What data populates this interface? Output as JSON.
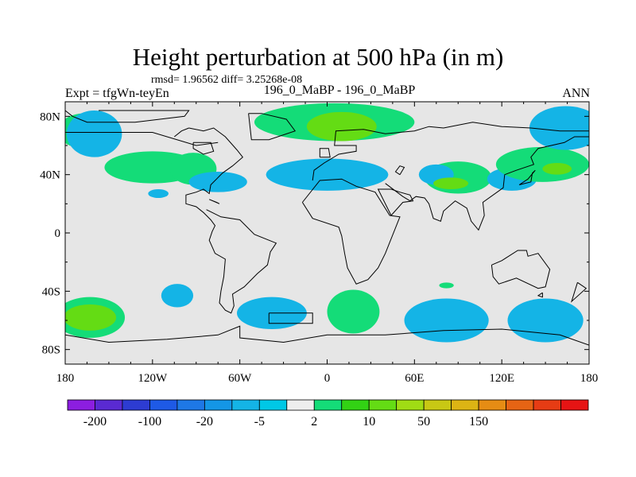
{
  "header": {
    "title": "Height perturbation at 500 hPa (in m)",
    "stats": "rmsd= 1.96562 diff= 3.25268e-08",
    "experiment": "Expt = tfgWn-teyEn",
    "case_pair": "196_0_MaBP - 196_0_MaBP",
    "season": "ANN"
  },
  "chart_data": {
    "type": "heatmap",
    "title": "Height perturbation at 500 hPa (in m)",
    "xlabel": "",
    "ylabel": "",
    "xlim": [
      -180,
      180
    ],
    "ylim": [
      -90,
      90
    ],
    "x_ticks": [
      {
        "value": -180,
        "label": "180"
      },
      {
        "value": -120,
        "label": "120W"
      },
      {
        "value": -60,
        "label": "60W"
      },
      {
        "value": 0,
        "label": "0"
      },
      {
        "value": 60,
        "label": "60E"
      },
      {
        "value": 120,
        "label": "120E"
      },
      {
        "value": 180,
        "label": "180"
      }
    ],
    "y_ticks": [
      {
        "value": 80,
        "label": "80N"
      },
      {
        "value": 40,
        "label": "40N"
      },
      {
        "value": 0,
        "label": "0"
      },
      {
        "value": -40,
        "label": "40S"
      },
      {
        "value": -80,
        "label": "80S"
      }
    ],
    "background_color": "#e6e6e6",
    "contour_levels": [
      -200,
      -150,
      -100,
      -50,
      -20,
      -10,
      -5,
      -2,
      2,
      5,
      10,
      20,
      50,
      100,
      150,
      200
    ],
    "colorbar": {
      "colors": [
        "#8c1ee0",
        "#5a2ad2",
        "#2d3cd2",
        "#1e5ae6",
        "#1e78e6",
        "#1496e6",
        "#14b4e6",
        "#00c8e6",
        "#eeeeee",
        "#14dc78",
        "#32d214",
        "#64dc14",
        "#a0dc14",
        "#c8c814",
        "#dcb414",
        "#e68c14",
        "#e66414",
        "#e63c14",
        "#e61414"
      ],
      "labels": [
        {
          "value": -200,
          "label": "-200"
        },
        {
          "value": -100,
          "label": "-100"
        },
        {
          "value": -20,
          "label": "-20"
        },
        {
          "value": -5,
          "label": "-5"
        },
        {
          "value": 2,
          "label": "2"
        },
        {
          "value": 10,
          "label": "10"
        },
        {
          "value": 50,
          "label": "50"
        },
        {
          "value": 150,
          "label": "150"
        }
      ]
    },
    "anomaly_regions": [
      {
        "name": "pacific-arctic-positive",
        "lon": -167,
        "lat": 70,
        "r_lon": 18,
        "r_lat": 12,
        "value": 3
      },
      {
        "name": "north-pacific-negative",
        "lon": -160,
        "lat": 68,
        "r_lon": 19,
        "r_lat": 16,
        "value": -6
      },
      {
        "name": "north-america-positive",
        "lon": -120,
        "lat": 45,
        "r_lon": 33,
        "r_lat": 11,
        "value": 3
      },
      {
        "name": "north-america-positive-2",
        "lon": -92,
        "lat": 44,
        "r_lon": 16,
        "r_lat": 11,
        "value": 3
      },
      {
        "name": "pacific-small-negative",
        "lon": -116,
        "lat": 27,
        "r_lon": 7,
        "r_lat": 3,
        "value": -6
      },
      {
        "name": "atlantic-negative",
        "lon": -75,
        "lat": 35,
        "r_lon": 20,
        "r_lat": 7,
        "value": -6
      },
      {
        "name": "arctic-europe-positive",
        "lon": 5,
        "lat": 76,
        "r_lon": 55,
        "r_lat": 13,
        "value": 3
      },
      {
        "name": "arctic-europe-strong",
        "lon": 10,
        "lat": 73,
        "r_lon": 24,
        "r_lat": 10,
        "value": 12
      },
      {
        "name": "eurasia-negative",
        "lon": 0,
        "lat": 40,
        "r_lon": 42,
        "r_lat": 11,
        "value": -6
      },
      {
        "name": "eurasia-positive-east",
        "lon": 90,
        "lat": 38,
        "r_lon": 23,
        "r_lat": 11,
        "value": 3
      },
      {
        "name": "asia-small-negative",
        "lon": 75,
        "lat": 40,
        "r_lon": 12,
        "r_lat": 7,
        "value": -6
      },
      {
        "name": "asia-strong",
        "lon": 85,
        "lat": 34,
        "r_lon": 12,
        "r_lat": 4,
        "value": 12
      },
      {
        "name": "east-asia-negative",
        "lon": 127,
        "lat": 37,
        "r_lon": 17,
        "r_lat": 8,
        "value": -6
      },
      {
        "name": "pacific-positive",
        "lon": 148,
        "lat": 47,
        "r_lon": 32,
        "r_lat": 12,
        "value": 3
      },
      {
        "name": "pacific-strong",
        "lon": 158,
        "lat": 44,
        "r_lon": 10,
        "r_lat": 4,
        "value": 12
      },
      {
        "name": "far-east-arctic-negative",
        "lon": 164,
        "lat": 72,
        "r_lon": 25,
        "r_lat": 15,
        "value": -6
      },
      {
        "name": "south-indian-positive",
        "lon": 82,
        "lat": -36,
        "r_lon": 5,
        "r_lat": 2,
        "value": 3
      },
      {
        "name": "south-pacific-negative",
        "lon": -103,
        "lat": -43,
        "r_lon": 11,
        "r_lat": 8,
        "value": -6
      },
      {
        "name": "south-atlantic-negative",
        "lon": -38,
        "lat": -55,
        "r_lon": 24,
        "r_lat": 11,
        "value": -6
      },
      {
        "name": "south-atlantic-positive",
        "lon": 18,
        "lat": -54,
        "r_lon": 18,
        "r_lat": 15,
        "value": 3
      },
      {
        "name": "southern-ocean-negative",
        "lon": 82,
        "lat": -60,
        "r_lon": 29,
        "r_lat": 15,
        "value": -6
      },
      {
        "name": "south-east-pacific-negative",
        "lon": 150,
        "lat": -60,
        "r_lon": 26,
        "r_lat": 15,
        "value": -6
      },
      {
        "name": "southwest-pacific-positive",
        "lon": -163,
        "lat": -58,
        "r_lon": 24,
        "r_lat": 14,
        "value": 3
      },
      {
        "name": "southwest-pacific-strong",
        "lon": -163,
        "lat": -58,
        "r_lon": 18,
        "r_lat": 9,
        "value": 12
      }
    ],
    "coastlines": [
      [
        [
          -157,
          84
        ],
        [
          -95,
          84
        ],
        [
          -98,
          80
        ],
        [
          -115,
          78
        ],
        [
          -132,
          76
        ],
        [
          -165,
          76
        ],
        [
          -175,
          80
        ],
        [
          -180,
          84
        ]
      ],
      [
        [
          -180,
          84
        ],
        [
          -180,
          69
        ],
        [
          -120,
          69
        ],
        [
          -90,
          60
        ],
        [
          -75,
          62
        ]
      ],
      [
        [
          -95,
          72
        ],
        [
          -85,
          70
        ],
        [
          -78,
          72
        ],
        [
          -70,
          66
        ],
        [
          -62,
          57
        ],
        [
          -58,
          52
        ],
        [
          -65,
          46
        ],
        [
          -72,
          41
        ],
        [
          -76,
          37
        ],
        [
          -80,
          33
        ],
        [
          -81,
          27
        ],
        [
          -85,
          30
        ],
        [
          -90,
          28
        ],
        [
          -97,
          26
        ],
        [
          -97,
          20
        ],
        [
          -90,
          18
        ],
        [
          -85,
          14
        ],
        [
          -80,
          9
        ],
        [
          -77,
          5
        ],
        [
          -79,
          1
        ],
        [
          -81,
          -5
        ],
        [
          -77,
          -14
        ],
        [
          -70,
          -18
        ],
        [
          -71,
          -30
        ],
        [
          -73,
          -40
        ],
        [
          -74,
          -48
        ],
        [
          -70,
          -53
        ],
        [
          -66,
          -55
        ],
        [
          -64,
          -50
        ],
        [
          -65,
          -42
        ],
        [
          -57,
          -37
        ],
        [
          -48,
          -28
        ],
        [
          -41,
          -22
        ],
        [
          -39,
          -13
        ],
        [
          -35,
          -7
        ],
        [
          -50,
          -1
        ],
        [
          -60,
          9
        ],
        [
          -73,
          11
        ],
        [
          -83,
          16
        ]
      ],
      [
        [
          -105,
          66
        ],
        [
          -100,
          70
        ],
        [
          -95,
          72
        ]
      ],
      [
        [
          -92,
          62
        ],
        [
          -80,
          62
        ],
        [
          -78,
          56
        ],
        [
          -85,
          54
        ],
        [
          -92,
          58
        ],
        [
          -92,
          62
        ]
      ],
      [
        [
          -54,
          82
        ],
        [
          -45,
          82
        ],
        [
          -28,
          78
        ],
        [
          -22,
          70
        ],
        [
          -40,
          64
        ],
        [
          -52,
          64
        ],
        [
          -54,
          82
        ]
      ],
      [
        [
          -40,
          -55
        ],
        [
          -10,
          -55
        ],
        [
          -10,
          -62
        ],
        [
          -40,
          -62
        ],
        [
          -40,
          -55
        ]
      ],
      [
        [
          -17,
          21
        ],
        [
          -10,
          10
        ],
        [
          8,
          4
        ],
        [
          10,
          -2
        ],
        [
          12,
          -14
        ],
        [
          14,
          -24
        ],
        [
          20,
          -35
        ],
        [
          28,
          -32
        ],
        [
          35,
          -24
        ],
        [
          40,
          -14
        ],
        [
          50,
          11
        ],
        [
          43,
          12
        ],
        [
          33,
          28
        ],
        [
          20,
          32
        ],
        [
          10,
          37
        ],
        [
          -5,
          36
        ],
        [
          -17,
          21
        ]
      ],
      [
        [
          -10,
          36
        ],
        [
          -9,
          43
        ],
        [
          -2,
          48
        ],
        [
          8,
          54
        ],
        [
          20,
          56
        ],
        [
          20,
          60
        ],
        [
          5,
          60
        ],
        [
          6,
          70
        ],
        [
          25,
          71
        ],
        [
          40,
          68
        ],
        [
          60,
          70
        ],
        [
          70,
          73
        ],
        [
          80,
          72
        ],
        [
          100,
          76
        ],
        [
          120,
          73
        ],
        [
          140,
          72
        ],
        [
          160,
          70
        ],
        [
          180,
          70
        ]
      ],
      [
        [
          -5,
          52
        ],
        [
          2,
          52
        ],
        [
          1,
          58
        ],
        [
          -5,
          58
        ],
        [
          -5,
          52
        ]
      ],
      [
        [
          40,
          34
        ],
        [
          52,
          25
        ],
        [
          57,
          22
        ],
        [
          61,
          25
        ],
        [
          67,
          24
        ],
        [
          70,
          20
        ],
        [
          73,
          10
        ],
        [
          78,
          8
        ],
        [
          80,
          15
        ],
        [
          88,
          22
        ],
        [
          96,
          17
        ],
        [
          99,
          8
        ],
        [
          104,
          2
        ],
        [
          108,
          12
        ],
        [
          107,
          21
        ],
        [
          121,
          31
        ],
        [
          122,
          40
        ],
        [
          130,
          43
        ],
        [
          142,
          47
        ],
        [
          140,
          52
        ],
        [
          145,
          58
        ],
        [
          163,
          62
        ],
        [
          170,
          66
        ],
        [
          180,
          66
        ]
      ],
      [
        [
          50,
          40
        ],
        [
          53,
          45
        ],
        [
          50,
          46
        ],
        [
          47,
          42
        ],
        [
          50,
          40
        ]
      ],
      [
        [
          44,
          12
        ],
        [
          52,
          21
        ],
        [
          59,
          22
        ],
        [
          57,
          26
        ],
        [
          50,
          28
        ],
        [
          44,
          30
        ],
        [
          35,
          30
        ],
        [
          44,
          12
        ]
      ],
      [
        [
          113,
          -22
        ],
        [
          120,
          -19
        ],
        [
          131,
          -12
        ],
        [
          137,
          -12
        ],
        [
          138,
          -16
        ],
        [
          145,
          -14
        ],
        [
          153,
          -25
        ],
        [
          150,
          -37
        ],
        [
          145,
          -38
        ],
        [
          130,
          -31
        ],
        [
          118,
          -35
        ],
        [
          114,
          -30
        ],
        [
          113,
          -22
        ]
      ],
      [
        [
          -180,
          -70
        ],
        [
          -150,
          -75
        ],
        [
          -110,
          -73
        ],
        [
          -75,
          -70
        ],
        [
          -60,
          -64
        ],
        [
          -60,
          -72
        ],
        [
          -30,
          -75
        ],
        [
          0,
          -70
        ],
        [
          40,
          -70
        ],
        [
          80,
          -67
        ],
        [
          120,
          -66
        ],
        [
          160,
          -70
        ],
        [
          180,
          -77
        ]
      ],
      [
        [
          148,
          -41
        ],
        [
          148,
          -44
        ],
        [
          145,
          -43
        ],
        [
          148,
          -41
        ]
      ],
      [
        [
          172,
          -34
        ],
        [
          178,
          -38
        ],
        [
          168,
          -47
        ],
        [
          172,
          -34
        ]
      ],
      [
        [
          132,
          33
        ],
        [
          140,
          35
        ],
        [
          141,
          41
        ],
        [
          143,
          43
        ],
        [
          138,
          37
        ],
        [
          132,
          33
        ]
      ],
      [
        [
          -76,
          21
        ],
        [
          -74,
          20
        ],
        [
          -81,
          23
        ],
        [
          -76,
          21
        ]
      ]
    ]
  }
}
